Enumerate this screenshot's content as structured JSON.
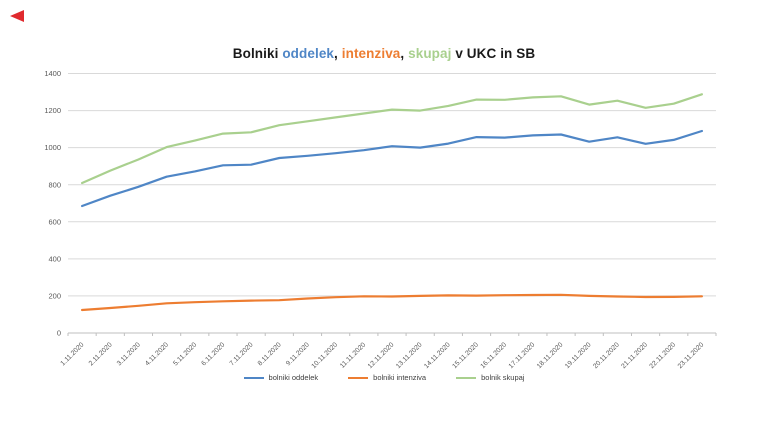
{
  "page": {
    "background": "#ffffff"
  },
  "decor": {
    "red_arrow_color": "#e02a2e"
  },
  "title": {
    "full": "Bolniki oddelek, intenziva, skupaj v UKC in SB",
    "parts": [
      {
        "text": "Bolniki ",
        "color": "#1a1a1a"
      },
      {
        "text": "oddelek",
        "color": "#4f86c6"
      },
      {
        "text": ", ",
        "color": "#1a1a1a"
      },
      {
        "text": "intenziva",
        "color": "#ed7d31"
      },
      {
        "text": ", ",
        "color": "#1a1a1a"
      },
      {
        "text": "skupaj",
        "color": "#a9d08e"
      },
      {
        "text": " v UKC in SB",
        "color": "#1a1a1a"
      }
    ]
  },
  "chart_data": {
    "type": "line",
    "title": "Bolniki oddelek, intenziva, skupaj v UKC in SB",
    "categories": [
      "1.11.2020",
      "2.11.2020",
      "3.11.2020",
      "4.11.2020",
      "5.11.2020",
      "6.11.2020",
      "7.11.2020",
      "8.11.2020",
      "9.11.2020",
      "10.11.2020",
      "11.11.2020",
      "12.11.2020",
      "13.11.2020",
      "14.11.2020",
      "15.11.2020",
      "16.11.2020",
      "17.11.2020",
      "18.11.2020",
      "19.11.2020",
      "20.11.2020",
      "21.11.2020",
      "22.11.2020",
      "23.11.2020"
    ],
    "series": [
      {
        "name": "bolniki oddelek",
        "color": "#4f86c6",
        "values": [
          685,
          741,
          789,
          843,
          872,
          905,
          908,
          944,
          956,
          970,
          986,
          1008,
          1000,
          1022,
          1057,
          1054,
          1066,
          1071,
          1032,
          1056,
          1021,
          1042,
          1090
        ]
      },
      {
        "name": "bolniki intenziva",
        "color": "#ed7d31",
        "values": [
          124,
          135,
          147,
          160,
          166,
          171,
          175,
          177,
          186,
          193,
          198,
          197,
          200,
          203,
          202,
          204,
          205,
          206,
          200,
          197,
          194,
          195,
          198
        ]
      },
      {
        "name": "bolnik skupaj",
        "color": "#a9d08e",
        "values": [
          809,
          876,
          936,
          1003,
          1038,
          1076,
          1083,
          1121,
          1142,
          1163,
          1184,
          1205,
          1200,
          1225,
          1259,
          1258,
          1271,
          1277,
          1232,
          1253,
          1215,
          1237,
          1288
        ]
      }
    ],
    "ylim": [
      0,
      1400
    ],
    "yticks": [
      0,
      200,
      400,
      600,
      800,
      1000,
      1200,
      1400
    ],
    "grid": true,
    "legend_position": "bottom",
    "gridline_color": "#d9d9d9",
    "axis_color": "#bfbfbf",
    "label_color": "#595959"
  }
}
